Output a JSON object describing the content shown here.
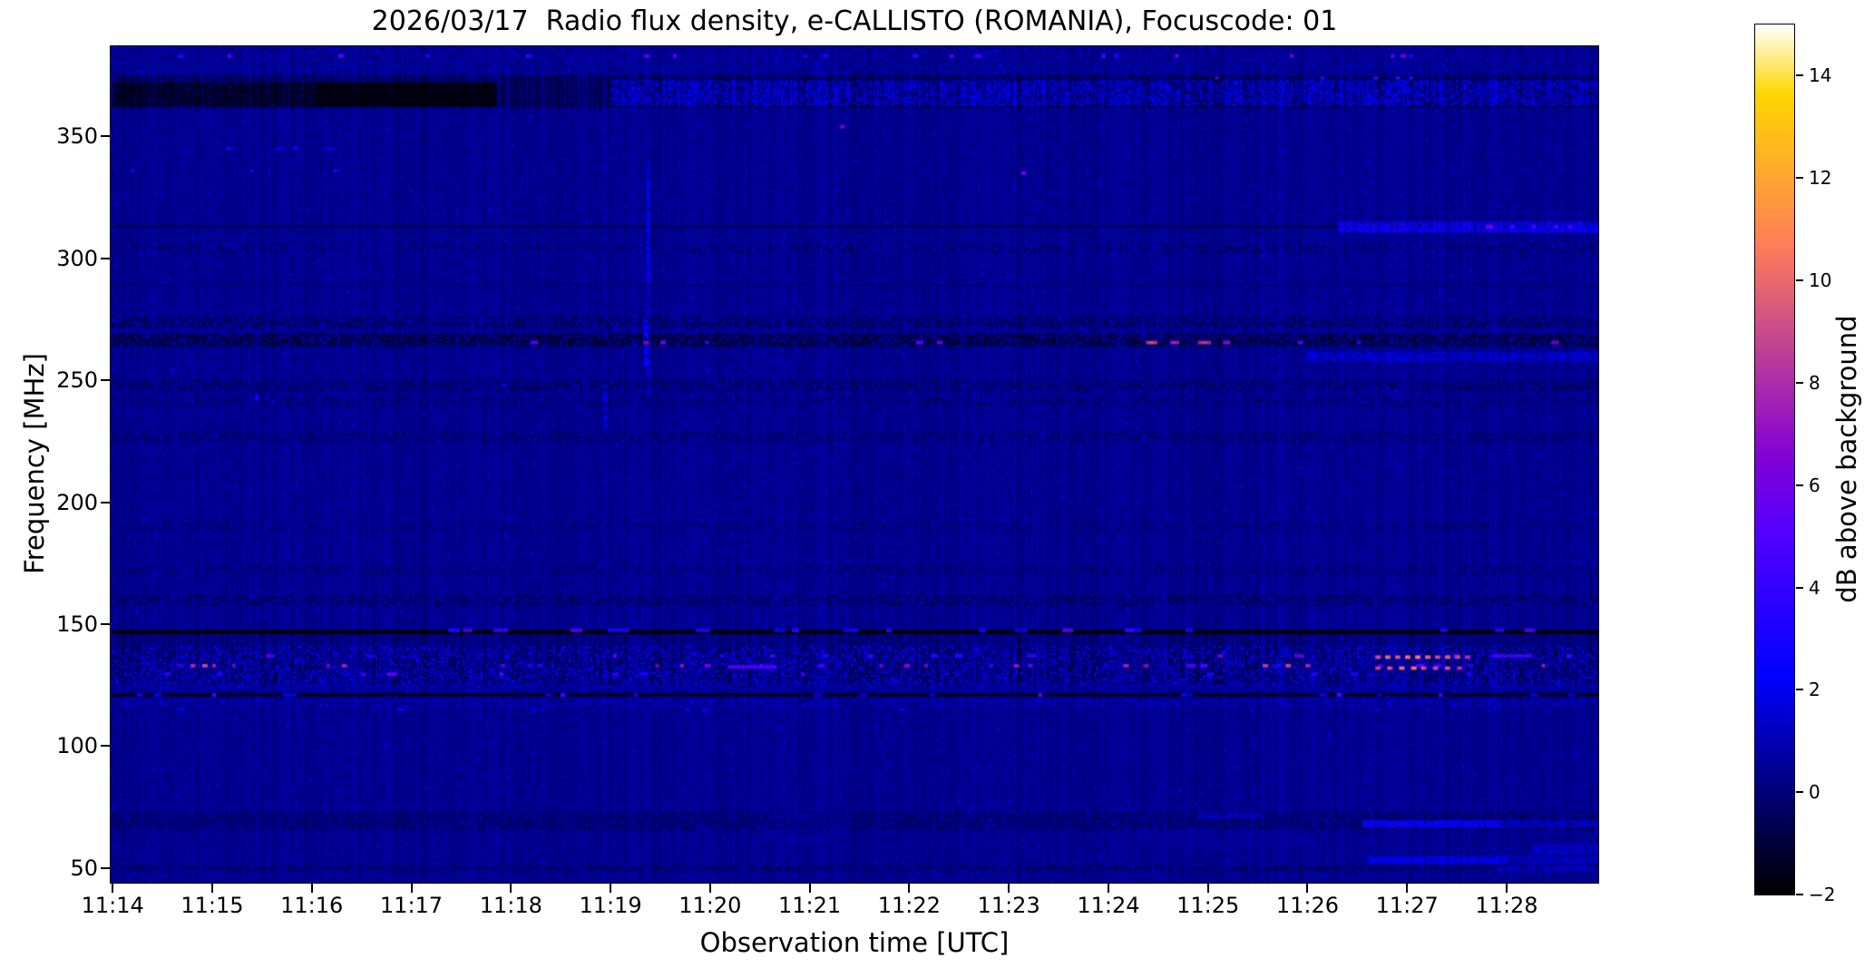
{
  "chart_data": {
    "type": "heatmap",
    "title": "2026/03/17  Radio flux density, e-CALLISTO (ROMANIA), Focuscode: 01",
    "xlabel": "Observation time [UTC]",
    "ylabel": "Frequency [MHz]",
    "colorbar_label": "dB above background",
    "x_tick_labels": [
      "11:14",
      "11:15",
      "11:16",
      "11:17",
      "11:18",
      "11:19",
      "11:20",
      "11:21",
      "11:22",
      "11:23",
      "11:24",
      "11:25",
      "11:26",
      "11:27",
      "11:28"
    ],
    "x_tick_minutes": [
      0,
      1,
      2,
      3,
      4,
      5,
      6,
      7,
      8,
      9,
      10,
      11,
      12,
      13,
      14
    ],
    "x_range": [
      -0.02,
      14.92
    ],
    "y_ticks": [
      50,
      100,
      150,
      200,
      250,
      300,
      350
    ],
    "y_range": [
      44,
      387
    ],
    "colorbar_ticks": [
      -2,
      0,
      2,
      4,
      6,
      8,
      10,
      12,
      14
    ],
    "color_scale": {
      "vmin": -2,
      "vmax": 15,
      "colormap": "gnuplot2"
    },
    "background_db": 0.38,
    "grid": false,
    "features": [
      {
        "type": "speckle",
        "t0": 0,
        "t1": 14.92,
        "f0": 376,
        "f1": 387,
        "d": 0.1,
        "vmin": 0.6,
        "vmax": 2.0
      },
      {
        "type": "dashrow",
        "f": 383,
        "th": 4,
        "t0": 0.1,
        "t1": 14.8,
        "n": 20,
        "lmin": 2,
        "lmax": 5,
        "vmin": 3,
        "vmax": 6.5
      },
      {
        "type": "speckle",
        "t0": 0,
        "t1": 14.92,
        "f0": 362,
        "f1": 375,
        "d": 0.92,
        "vmin": -1.6,
        "vmax": 0.7,
        "stripes": 1
      },
      {
        "type": "speckle",
        "t0": 0,
        "t1": 3.85,
        "f0": 363,
        "f1": 372,
        "d": 0.85,
        "vmin": -2,
        "vmax": -1.0,
        "stripes": 1
      },
      {
        "type": "speckle",
        "t0": 2.05,
        "t1": 3.85,
        "f0": 363,
        "f1": 372,
        "d": 0.97,
        "vmin": -2,
        "vmax": -1.6
      },
      {
        "type": "speckle",
        "t0": 5.0,
        "t1": 14.92,
        "f0": 363,
        "f1": 373,
        "d": 0.6,
        "vmin": 0.4,
        "vmax": 2.8,
        "stripes": 1
      },
      {
        "type": "dashrow",
        "f": 374,
        "th": 3,
        "t0": 9.4,
        "t1": 13.6,
        "n": 5,
        "lmin": 2,
        "lmax": 4,
        "vmin": 4,
        "vmax": 6
      },
      {
        "type": "dashrow",
        "f": 345,
        "th": 3,
        "t0": 0.9,
        "t1": 2.4,
        "n": 4,
        "lmin": 4,
        "lmax": 9,
        "vmin": 2.2,
        "vmax": 3.8
      },
      {
        "type": "dashrow",
        "f": 336,
        "th": 3,
        "t0": 0.1,
        "t1": 2.3,
        "n": 3,
        "lmin": 3,
        "lmax": 6,
        "vmin": 1.8,
        "vmax": 3.2
      },
      {
        "type": "hline",
        "f": 313,
        "th": 2,
        "v": -0.9,
        "t0": 0,
        "t1": 14.92
      },
      {
        "type": "speckle",
        "t0": 12.3,
        "t1": 14.92,
        "f0": 311,
        "f1": 315,
        "d": 0.8,
        "vmin": 1.4,
        "vmax": 3.8,
        "stripes": 1
      },
      {
        "type": "dashrow",
        "f": 313,
        "th": 4,
        "t0": 13.3,
        "t1": 14.85,
        "n": 6,
        "lmin": 2,
        "lmax": 6,
        "vmin": 4.5,
        "vmax": 7
      },
      {
        "type": "speckle",
        "t0": 0,
        "t1": 14.92,
        "f0": 303,
        "f1": 306,
        "d": 0.22,
        "vmin": -1.2,
        "vmax": -0.3
      },
      {
        "type": "speckle",
        "t0": 0,
        "t1": 14.92,
        "f0": 303,
        "f1": 306,
        "d": 0.1,
        "vmin": 0.8,
        "vmax": 1.6
      },
      {
        "type": "hline",
        "f": 289,
        "th": 1,
        "v": -0.55,
        "t0": 0,
        "t1": 14.92
      },
      {
        "type": "speckle",
        "t0": 0,
        "t1": 14.92,
        "f0": 272,
        "f1": 276,
        "d": 0.3,
        "vmin": -1.4,
        "vmax": -0.5
      },
      {
        "type": "speckle",
        "t0": 0,
        "t1": 14.92,
        "f0": 264,
        "f1": 269,
        "d": 0.55,
        "vmin": -1.8,
        "vmax": -0.7
      },
      {
        "type": "speckle",
        "t0": 12.0,
        "t1": 14.92,
        "f0": 258.5,
        "f1": 261.5,
        "d": 0.7,
        "vmin": 0.9,
        "vmax": 2.6,
        "stripes": 1
      },
      {
        "type": "speckle",
        "t0": 0,
        "t1": 14.92,
        "f0": 246,
        "f1": 250,
        "d": 0.28,
        "vmin": -1.2,
        "vmax": -0.3
      },
      {
        "type": "speckle",
        "t0": 0,
        "t1": 14.92,
        "f0": 240,
        "f1": 243,
        "d": 0.18,
        "vmin": -1.1,
        "vmax": -0.3
      },
      {
        "type": "speckle",
        "t0": 0,
        "t1": 14.92,
        "f0": 225,
        "f1": 229,
        "d": 0.24,
        "vmin": -1.1,
        "vmax": -0.2
      },
      {
        "type": "speckle",
        "t0": 0,
        "t1": 14.92,
        "f0": 189,
        "f1": 191.5,
        "d": 0.15,
        "vmin": -1.0,
        "vmax": -0.2
      },
      {
        "type": "speckle",
        "t0": 0,
        "t1": 14.92,
        "f0": 171,
        "f1": 174,
        "d": 0.18,
        "vmin": -1.0,
        "vmax": -0.2
      },
      {
        "type": "speckle",
        "t0": 0,
        "t1": 14.92,
        "f0": 158,
        "f1": 162,
        "d": 0.3,
        "vmin": -1.3,
        "vmax": -0.3
      },
      {
        "type": "vstreak",
        "t": 5.38,
        "f0": 245,
        "f1": 340,
        "w": 4,
        "d": 0.55,
        "v": 1.6
      },
      {
        "type": "vstreak",
        "t": 5.38,
        "f0": 290,
        "f1": 332,
        "w": 3,
        "d": 0.7,
        "v": 2.3
      },
      {
        "type": "vstreak",
        "t": 5.36,
        "f0": 255,
        "f1": 275,
        "w": 5,
        "d": 0.7,
        "v": 2.6
      },
      {
        "type": "vstreak",
        "t": 4.95,
        "f0": 231,
        "f1": 249,
        "w": 5,
        "d": 0.6,
        "v": 2.1
      },
      {
        "type": "vstreak",
        "t": 10.35,
        "f0": 200,
        "f1": 285,
        "w": 3,
        "d": 0.4,
        "v": 1.1
      },
      {
        "type": "vstreak",
        "t": 7.35,
        "f0": 195,
        "f1": 240,
        "w": 3,
        "d": 0.35,
        "v": 0.9
      },
      {
        "type": "dashes",
        "f": 265.5,
        "th": 4,
        "items": [
          [
            4.2,
            8,
            5.5
          ],
          [
            5.33,
            6,
            6.5
          ],
          [
            5.5,
            5,
            6
          ],
          [
            5.95,
            4,
            4.5
          ],
          [
            8.07,
            7,
            5.2
          ],
          [
            8.28,
            6,
            5.6
          ],
          [
            10.38,
            12,
            8.3
          ],
          [
            10.62,
            9,
            7
          ],
          [
            10.9,
            14,
            7.6
          ],
          [
            11.15,
            8,
            6.5
          ],
          [
            11.9,
            5,
            5
          ],
          [
            12.5,
            4,
            4.2
          ],
          [
            14.45,
            7,
            6.2
          ]
        ]
      },
      {
        "type": "dot",
        "t": 7.33,
        "f": 354,
        "w": 5,
        "h": 4,
        "v": 6.3
      },
      {
        "type": "dot",
        "t": 9.15,
        "f": 335,
        "w": 5,
        "h": 4,
        "v": 6.0
      },
      {
        "type": "dot",
        "t": 1.45,
        "f": 243,
        "w": 4,
        "h": 6,
        "v": 3.0
      },
      {
        "type": "dot",
        "t": 3.93,
        "f": 248,
        "w": 5,
        "h": 3,
        "v": 2.5
      },
      {
        "type": "speckle",
        "t0": 0,
        "t1": 14.92,
        "f0": 149.5,
        "f1": 153,
        "d": 0.5,
        "vmin": -0.6,
        "vmax": 1.4,
        "stripes": 1
      },
      {
        "type": "hline",
        "f": 146.8,
        "th": 5,
        "v": -2,
        "t0": 0,
        "t1": 14.92
      },
      {
        "type": "dashrow",
        "f": 147.5,
        "th": 4,
        "t0": 0.2,
        "t1": 14.8,
        "n": 26,
        "lmin": 4,
        "lmax": 16,
        "vmin": 2.4,
        "vmax": 5.2
      },
      {
        "type": "speckle",
        "t0": 0,
        "t1": 14.92,
        "f0": 142,
        "f1": 146,
        "d": 0.5,
        "vmin": -1.2,
        "vmax": 0.8,
        "stripes": 1
      },
      {
        "type": "speckle",
        "t0": 0,
        "t1": 14.92,
        "f0": 126,
        "f1": 141,
        "d": 0.8,
        "vmin": -1.5,
        "vmax": 1.0,
        "stripes": 1
      },
      {
        "type": "speckle",
        "t0": 0,
        "t1": 14.92,
        "f0": 126,
        "f1": 141,
        "d": 0.25,
        "vmin": 1.0,
        "vmax": 3.0
      },
      {
        "type": "dashrow",
        "f": 137,
        "th": 4,
        "t0": 0.2,
        "t1": 14.8,
        "n": 17,
        "lmin": 3,
        "lmax": 9,
        "vmin": 3,
        "vmax": 6
      },
      {
        "type": "dashrow",
        "f": 133,
        "th": 4,
        "t0": 0.2,
        "t1": 14.8,
        "n": 15,
        "lmin": 3,
        "lmax": 9,
        "vmin": 3.2,
        "vmax": 6.2
      },
      {
        "type": "dashrow",
        "f": 129.5,
        "th": 4,
        "t0": 0.2,
        "t1": 14.8,
        "n": 13,
        "lmin": 3,
        "lmax": 8,
        "vmin": 3,
        "vmax": 5.8
      },
      {
        "type": "dashes",
        "f": 133,
        "th": 4,
        "items": [
          [
            0.78,
            5,
            7.5
          ],
          [
            0.9,
            5,
            8.5
          ],
          [
            1.0,
            4,
            7
          ],
          [
            2.15,
            4,
            6.5
          ],
          [
            2.3,
            5,
            7.3
          ],
          [
            5.45,
            4,
            6.2
          ],
          [
            5.7,
            4,
            6.8
          ],
          [
            5.95,
            5,
            6.4
          ],
          [
            6.5,
            4,
            6.0
          ],
          [
            7.7,
            4,
            6.4
          ],
          [
            7.95,
            5,
            6.8
          ],
          [
            8.15,
            4,
            6.2
          ],
          [
            9.05,
            5,
            7
          ],
          [
            9.2,
            4,
            6.5
          ],
          [
            10.15,
            5,
            7.2
          ],
          [
            10.35,
            5,
            6.5
          ],
          [
            11.55,
            6,
            8
          ],
          [
            11.78,
            5,
            8.5
          ],
          [
            11.98,
            5,
            7.5
          ],
          [
            14.35,
            4,
            7
          ]
        ]
      },
      {
        "type": "dashes",
        "f": 136.5,
        "th": 4,
        "items": [
          [
            12.68,
            6,
            8.5
          ],
          [
            12.78,
            5,
            9.5
          ],
          [
            12.88,
            6,
            8.8
          ],
          [
            12.98,
            5,
            9.8
          ],
          [
            13.08,
            6,
            10.2
          ],
          [
            13.18,
            5,
            9.2
          ],
          [
            13.28,
            6,
            8.6
          ],
          [
            13.38,
            5,
            9.0
          ],
          [
            13.48,
            5,
            8.2
          ],
          [
            13.58,
            5,
            7.6
          ]
        ]
      },
      {
        "type": "dashes",
        "f": 132,
        "th": 4,
        "items": [
          [
            12.68,
            6,
            8.0
          ],
          [
            12.8,
            5,
            9.0
          ],
          [
            12.92,
            6,
            9.6
          ],
          [
            13.04,
            6,
            10.0
          ],
          [
            13.14,
            5,
            8.8
          ],
          [
            13.26,
            6,
            8.4
          ],
          [
            13.38,
            5,
            8.8
          ],
          [
            13.5,
            5,
            7.8
          ]
        ]
      },
      {
        "type": "hline",
        "f": 132.5,
        "th": 4,
        "v": 5.0,
        "t0": 6.18,
        "t1": 6.66
      },
      {
        "type": "hline",
        "f": 137,
        "th": 4,
        "v": 4.5,
        "t0": 13.85,
        "t1": 14.25
      },
      {
        "type": "speckle",
        "t0": 0,
        "t1": 14.92,
        "f0": 123.5,
        "f1": 125.5,
        "d": 0.35,
        "vmin": 0.4,
        "vmax": 1.8
      },
      {
        "type": "hline",
        "f": 121,
        "th": 3,
        "v": -1.9,
        "t0": 0,
        "t1": 14.92
      },
      {
        "type": "dashrow",
        "f": 121,
        "th": 3,
        "t0": 0.2,
        "t1": 14.8,
        "n": 18,
        "lmin": 3,
        "lmax": 10,
        "vmin": 1.4,
        "vmax": 3.4
      },
      {
        "type": "dashes",
        "f": 121,
        "th": 4,
        "items": [
          [
            1.0,
            4,
            5
          ],
          [
            4.5,
            3,
            5.5
          ],
          [
            9.3,
            4,
            6
          ],
          [
            12.3,
            4,
            5.5
          ],
          [
            13.32,
            3,
            5
          ]
        ]
      },
      {
        "type": "speckle",
        "t0": 0,
        "t1": 14.92,
        "f0": 116.5,
        "f1": 119,
        "d": 0.3,
        "vmin": 0.6,
        "vmax": 2.2
      },
      {
        "type": "dashrow",
        "f": 115,
        "th": 3,
        "t0": 0.2,
        "t1": 14.8,
        "n": 12,
        "lmin": 3,
        "lmax": 7,
        "vmin": 1.4,
        "vmax": 2.8
      },
      {
        "type": "speckle",
        "t0": 0,
        "t1": 14.92,
        "f0": 66,
        "f1": 73,
        "d": 0.55,
        "vmin": -0.9,
        "vmax": 0.3
      },
      {
        "type": "patch",
        "t0": 12.55,
        "t1": 13.95,
        "f0": 66.8,
        "f1": 69.6,
        "v": 2.6,
        "d": 0.9,
        "stripes": 1
      },
      {
        "type": "patch",
        "t0": 13.95,
        "t1": 14.92,
        "f0": 66.8,
        "f1": 69.6,
        "v": 1.5,
        "d": 0.8,
        "stripes": 1
      },
      {
        "type": "patch",
        "t0": 10.9,
        "t1": 11.55,
        "f0": 70.5,
        "f1": 72.5,
        "v": 1.6,
        "d": 0.8
      },
      {
        "type": "patch",
        "t0": 12.6,
        "t1": 14.0,
        "f0": 52.5,
        "f1": 54.8,
        "v": 2.0,
        "d": 0.85,
        "stripes": 1
      },
      {
        "type": "patch",
        "t0": 14.0,
        "t1": 14.92,
        "f0": 52.5,
        "f1": 54.8,
        "v": 1.2,
        "d": 0.7
      },
      {
        "type": "patch",
        "t0": 14.25,
        "t1": 14.92,
        "f0": 56,
        "f1": 60,
        "v": 1.4,
        "d": 0.7
      },
      {
        "type": "patch",
        "t0": 10.3,
        "t1": 12.0,
        "f0": 58,
        "f1": 66,
        "v": 0.75,
        "d": 0.5
      },
      {
        "type": "patch",
        "t0": 6.6,
        "t1": 7.4,
        "f0": 62,
        "f1": 73,
        "v": 0.6,
        "d": 0.5
      },
      {
        "type": "speckle",
        "t0": 0,
        "t1": 14.92,
        "f0": 49.3,
        "f1": 51,
        "d": 0.5,
        "vmin": -1.1,
        "vmax": 0.2
      },
      {
        "type": "patch",
        "t0": 13.9,
        "t1": 14.92,
        "f0": 49.5,
        "f1": 51,
        "v": 1.4,
        "d": 0.7
      }
    ]
  }
}
